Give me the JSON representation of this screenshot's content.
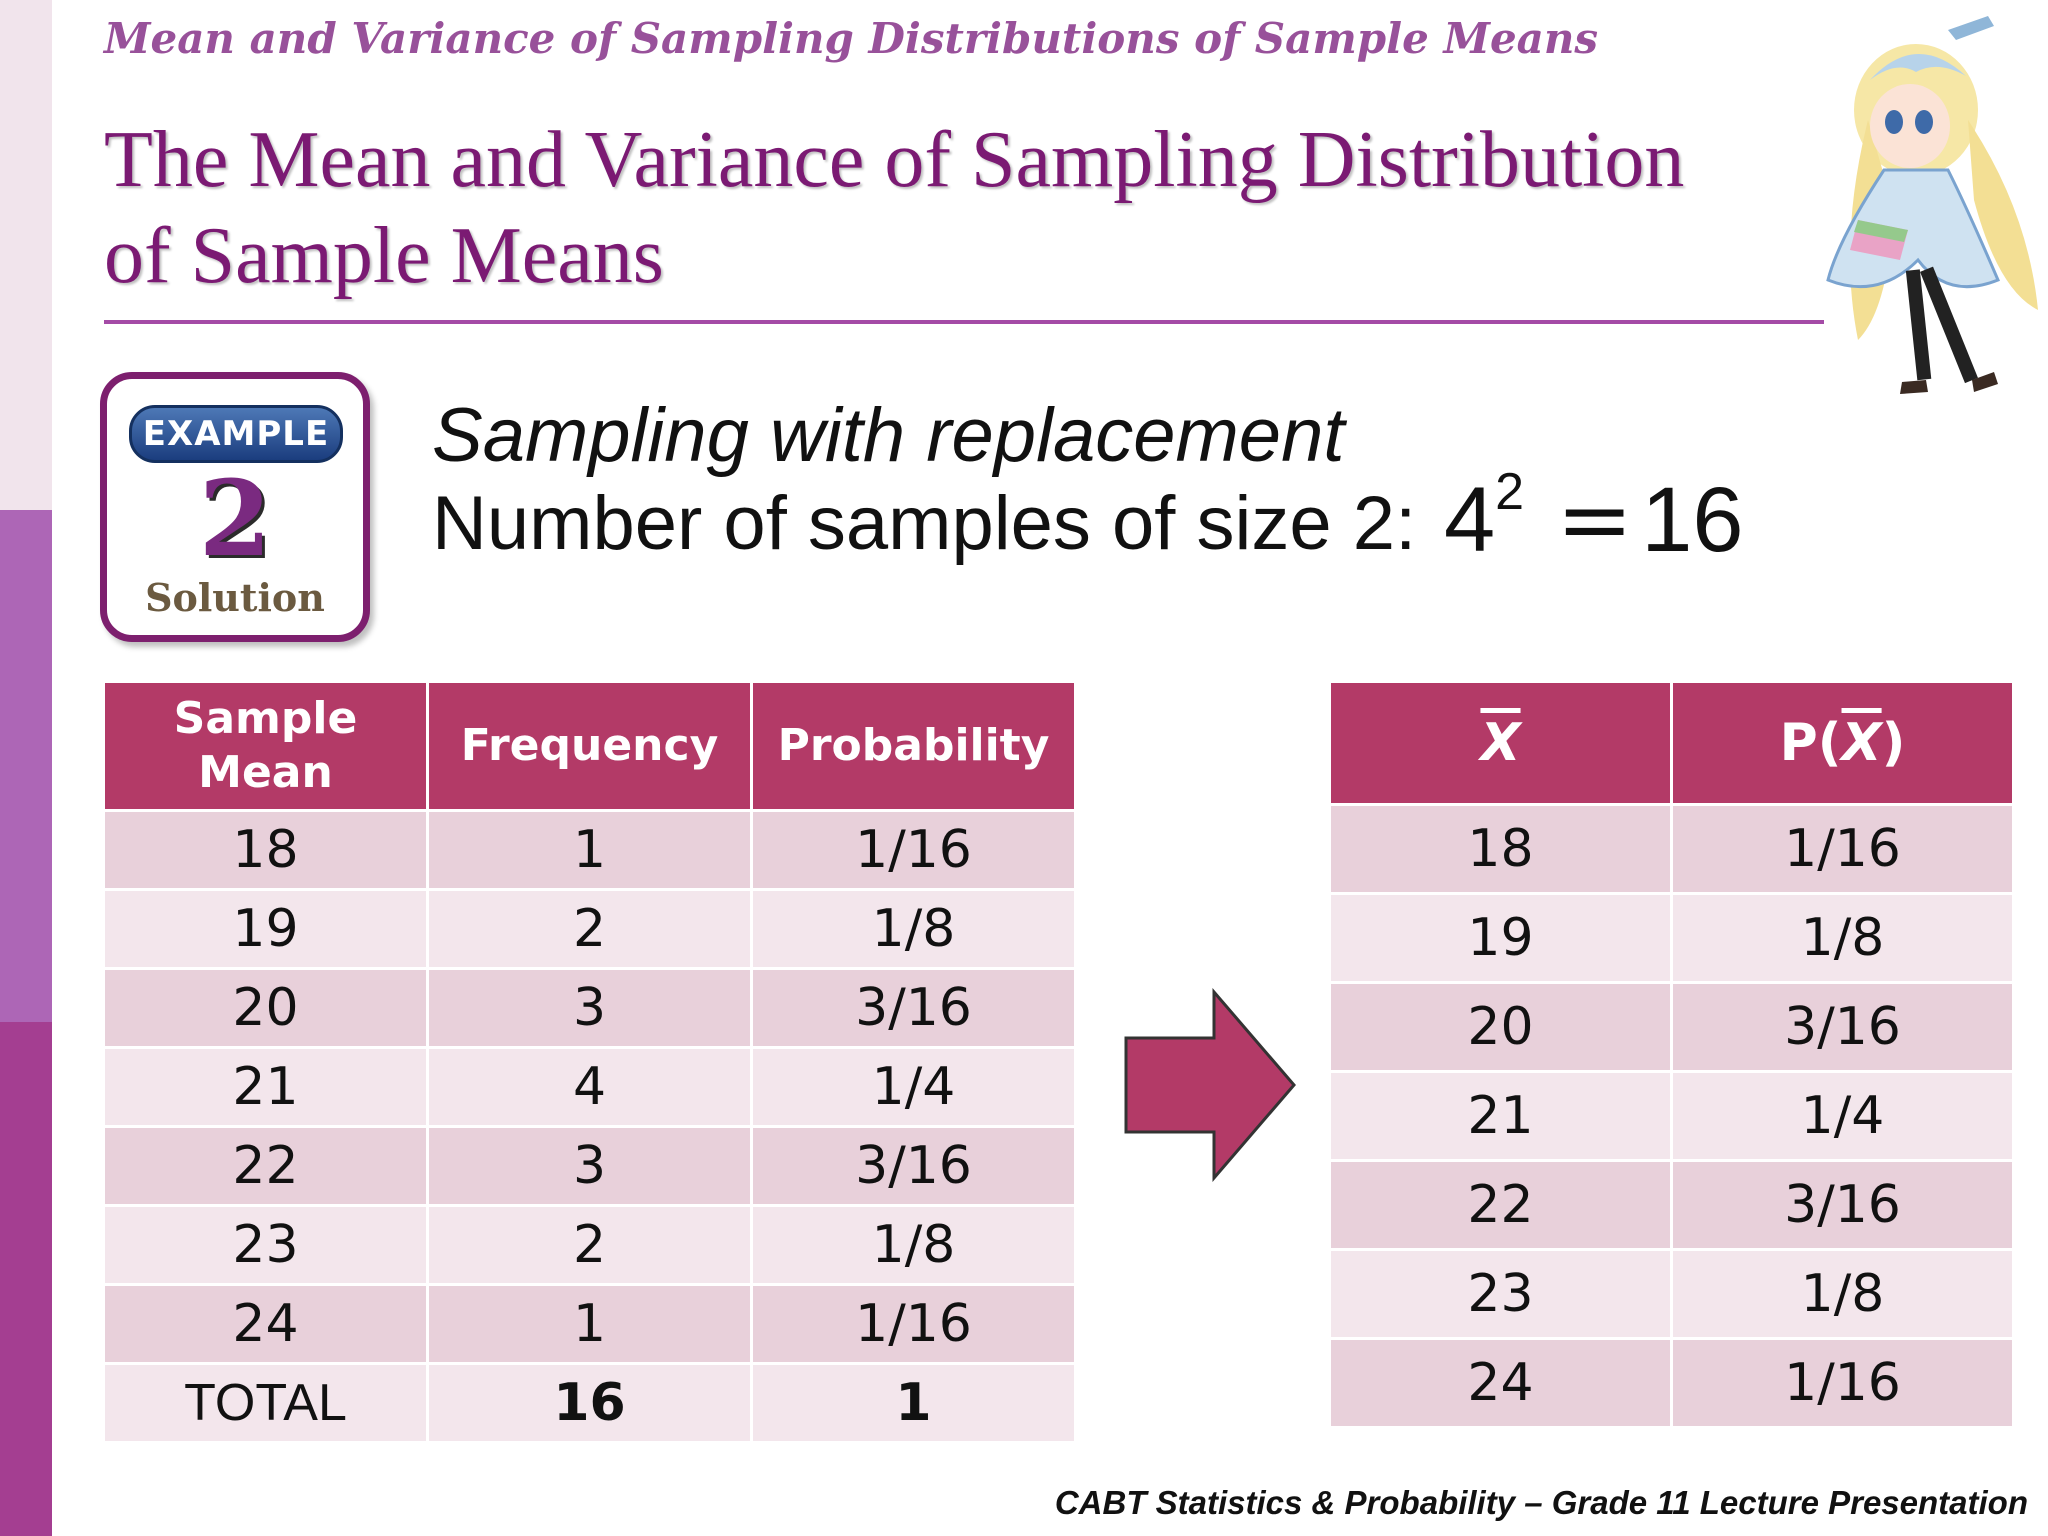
{
  "header": {
    "topic": "Mean and Variance of Sampling Distributions of Sample Means",
    "title": "The Mean and Variance of Sampling Distribution of Sample Means"
  },
  "badge": {
    "label": "EXAMPLE",
    "number": "2",
    "sub": "Solution"
  },
  "content": {
    "line1": "Sampling with replacement",
    "line2": "Number of samples of size 2:",
    "formula_base": "4",
    "formula_exp": "2",
    "formula_eq": "=",
    "formula_result": "16"
  },
  "left_table": {
    "headers": [
      "Sample Mean",
      "Frequency",
      "Probability"
    ],
    "rows": [
      [
        "18",
        "1",
        "1/16"
      ],
      [
        "19",
        "2",
        "1/8"
      ],
      [
        "20",
        "3",
        "3/16"
      ],
      [
        "21",
        "4",
        "1/4"
      ],
      [
        "22",
        "3",
        "3/16"
      ],
      [
        "23",
        "2",
        "1/8"
      ],
      [
        "24",
        "1",
        "1/16"
      ]
    ],
    "total": [
      "TOTAL",
      "16",
      "1"
    ]
  },
  "right_table": {
    "header_x": "X",
    "header_p_prefix": "P(",
    "header_p_var": "X",
    "header_p_suffix": ")",
    "rows": [
      [
        "18",
        "1/16"
      ],
      [
        "19",
        "1/8"
      ],
      [
        "20",
        "3/16"
      ],
      [
        "21",
        "1/4"
      ],
      [
        "22",
        "3/16"
      ],
      [
        "23",
        "1/8"
      ],
      [
        "24",
        "1/16"
      ]
    ]
  },
  "footer": "CABT Statistics & Probability – Grade 11 Lecture Presentation",
  "colors": {
    "header_fill": "#b33a67",
    "row_dark": "#e8d0da",
    "row_light": "#f3e6ec",
    "title": "#7b1a73",
    "arrow": "#b33a67"
  },
  "icons": {
    "arrow": "right-arrow-icon",
    "mascot": "anime-mascot-illustration"
  }
}
